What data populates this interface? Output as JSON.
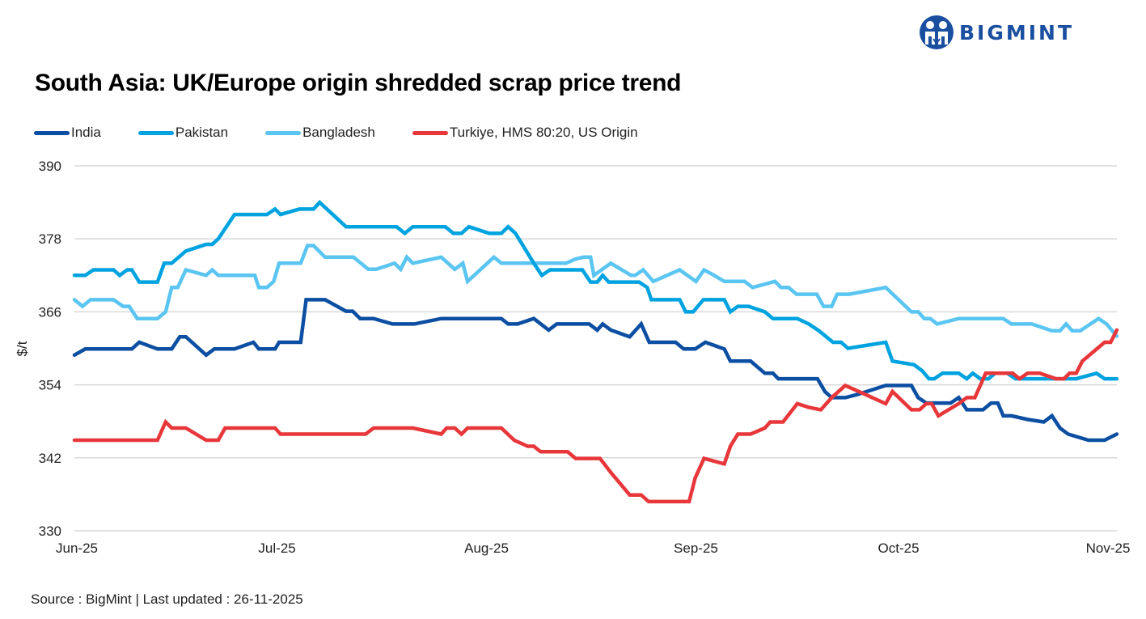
{
  "brand": {
    "name": "BIGMINT",
    "icon": "bigmint-people-logo-icon",
    "color": "#1a4fa0"
  },
  "source_text": "Source : BigMint | Last updated : 26-11-2025",
  "chart_data": {
    "type": "line",
    "title": "South Asia: UK/Europe origin shredded scrap price trend",
    "xlabel": "",
    "ylabel": "$/t",
    "ylim": [
      330,
      390
    ],
    "yticks": [
      330,
      342,
      354,
      366,
      378,
      390
    ],
    "x_unit": "days since 1-Jun-2025",
    "xlim": [
      0,
      154
    ],
    "xticks": [
      {
        "label": "Jun-25",
        "x": 0
      },
      {
        "label": "Jul-25",
        "x": 30
      },
      {
        "label": "Aug-25",
        "x": 61
      },
      {
        "label": "Sep-25",
        "x": 92
      },
      {
        "label": "Oct-25",
        "x": 122
      },
      {
        "label": "Nov-25",
        "x": 153
      }
    ],
    "grid": true,
    "legend_position": "top-left",
    "series": [
      {
        "name": "India",
        "color": "#0b4ea2",
        "points": [
          [
            0,
            358.9
          ],
          [
            1.6,
            359.9
          ],
          [
            8.5,
            359.9
          ],
          [
            9.6,
            361
          ],
          [
            12.3,
            359.9
          ],
          [
            14.4,
            359.9
          ],
          [
            15.6,
            361.9
          ],
          [
            16.5,
            361.9
          ],
          [
            19.5,
            358.9
          ],
          [
            20.7,
            359.9
          ],
          [
            23.7,
            359.9
          ],
          [
            26.5,
            361
          ],
          [
            27.3,
            359.9
          ],
          [
            29.7,
            359.9
          ],
          [
            30.3,
            361
          ],
          [
            33.5,
            361
          ],
          [
            34.3,
            368
          ],
          [
            37.1,
            368
          ],
          [
            40.2,
            366.1
          ],
          [
            41.2,
            366.1
          ],
          [
            42.3,
            364.9
          ],
          [
            44.3,
            364.9
          ],
          [
            47.1,
            364
          ],
          [
            50.3,
            364
          ],
          [
            54.3,
            364.9
          ],
          [
            63.2,
            364.9
          ],
          [
            64.2,
            364
          ],
          [
            65.6,
            364
          ],
          [
            68,
            364.9
          ],
          [
            70.2,
            363
          ],
          [
            71.4,
            364
          ],
          [
            76.2,
            364
          ],
          [
            77.4,
            363
          ],
          [
            78.2,
            364
          ],
          [
            79.4,
            363
          ],
          [
            82.2,
            361.9
          ],
          [
            83.9,
            364
          ],
          [
            85.1,
            361
          ],
          [
            89,
            361
          ],
          [
            90.2,
            359.9
          ],
          [
            91.9,
            359.9
          ],
          [
            93.4,
            361
          ],
          [
            96.2,
            359.9
          ],
          [
            97.1,
            357.9
          ],
          [
            100.1,
            357.9
          ],
          [
            102.2,
            355.9
          ],
          [
            103.4,
            355.9
          ],
          [
            104.2,
            355
          ],
          [
            110,
            355
          ],
          [
            111.1,
            352.9
          ],
          [
            112.1,
            351.9
          ],
          [
            114.1,
            351.9
          ],
          [
            115.9,
            352.4
          ],
          [
            120.1,
            353.9
          ],
          [
            123.9,
            353.9
          ],
          [
            124.9,
            351.9
          ],
          [
            126.1,
            351
          ],
          [
            127.9,
            351
          ],
          [
            129.7,
            351
          ],
          [
            130.9,
            351.9
          ],
          [
            132.1,
            349.9
          ],
          [
            134.5,
            349.9
          ],
          [
            135.7,
            351
          ],
          [
            136.7,
            351
          ],
          [
            137.5,
            348.9
          ],
          [
            138.7,
            348.9
          ],
          [
            141.1,
            348.3
          ],
          [
            143.5,
            347.9
          ],
          [
            144.7,
            348.9
          ],
          [
            145.9,
            346.9
          ],
          [
            147.1,
            345.9
          ],
          [
            150.1,
            344.9
          ],
          [
            152.5,
            344.9
          ],
          [
            154.3,
            345.9
          ]
        ]
      },
      {
        "name": "Pakistan",
        "color": "#00a3e0",
        "points": [
          [
            0,
            372
          ],
          [
            1.6,
            372
          ],
          [
            2.8,
            372.9
          ],
          [
            5.8,
            372.9
          ],
          [
            6.7,
            372
          ],
          [
            7.8,
            372.9
          ],
          [
            8.5,
            372.9
          ],
          [
            9.6,
            370.9
          ],
          [
            12.3,
            370.9
          ],
          [
            13.3,
            374
          ],
          [
            14.4,
            374
          ],
          [
            16.5,
            376
          ],
          [
            19.5,
            377.1
          ],
          [
            20.4,
            377.1
          ],
          [
            21.3,
            378
          ],
          [
            23.7,
            382
          ],
          [
            28.5,
            382
          ],
          [
            29.7,
            382.9
          ],
          [
            30.5,
            382
          ],
          [
            33.3,
            382.9
          ],
          [
            35.4,
            382.9
          ],
          [
            36.3,
            384
          ],
          [
            40.2,
            380
          ],
          [
            47.7,
            380
          ],
          [
            48.9,
            378.9
          ],
          [
            50.1,
            380
          ],
          [
            54.9,
            380
          ],
          [
            56.1,
            378.9
          ],
          [
            57.3,
            378.9
          ],
          [
            58.4,
            380
          ],
          [
            61.4,
            378.9
          ],
          [
            63.2,
            378.9
          ],
          [
            64.2,
            380
          ],
          [
            65.3,
            378.9
          ],
          [
            68,
            374
          ],
          [
            69.2,
            372
          ],
          [
            70.4,
            372.9
          ],
          [
            74,
            372.9
          ],
          [
            75.2,
            372.9
          ],
          [
            76.4,
            370.9
          ],
          [
            77.4,
            370.9
          ],
          [
            78.2,
            372
          ],
          [
            79.1,
            370.9
          ],
          [
            83.6,
            370.9
          ],
          [
            84.8,
            370
          ],
          [
            85.4,
            368
          ],
          [
            89.6,
            368
          ],
          [
            90.5,
            366
          ],
          [
            91.6,
            366
          ],
          [
            93.1,
            368
          ],
          [
            96.2,
            368
          ],
          [
            97.1,
            366
          ],
          [
            98.2,
            366.9
          ],
          [
            99.8,
            366.9
          ],
          [
            102.2,
            366
          ],
          [
            103.4,
            364.9
          ],
          [
            107,
            364.9
          ],
          [
            108.7,
            364
          ],
          [
            110.2,
            362.9
          ],
          [
            112.3,
            361
          ],
          [
            113.5,
            361
          ],
          [
            114.5,
            360
          ],
          [
            120.1,
            361
          ],
          [
            121.1,
            357.9
          ],
          [
            124.3,
            357.3
          ],
          [
            125.5,
            356.3
          ],
          [
            126.5,
            355
          ],
          [
            127.3,
            355
          ],
          [
            128.5,
            355.9
          ],
          [
            130.9,
            355.9
          ],
          [
            132.1,
            355
          ],
          [
            133,
            355.9
          ],
          [
            134.1,
            355
          ],
          [
            135.3,
            355
          ],
          [
            136.3,
            355.9
          ],
          [
            138.1,
            355.9
          ],
          [
            139.3,
            355
          ],
          [
            140.5,
            355
          ],
          [
            142.9,
            355
          ],
          [
            148.3,
            355
          ],
          [
            151.3,
            355.9
          ],
          [
            152.5,
            355
          ],
          [
            154.3,
            355
          ]
        ]
      },
      {
        "name": "Bangladesh",
        "color": "#5bc5f2",
        "points": [
          [
            0,
            368
          ],
          [
            1.2,
            366.9
          ],
          [
            2.4,
            368
          ],
          [
            5.8,
            368
          ],
          [
            7.2,
            366.9
          ],
          [
            8.1,
            366.9
          ],
          [
            9.3,
            364.9
          ],
          [
            12.3,
            364.9
          ],
          [
            13.5,
            366
          ],
          [
            14.4,
            370
          ],
          [
            15.3,
            370
          ],
          [
            16.5,
            372.9
          ],
          [
            19.5,
            372
          ],
          [
            20.4,
            372.9
          ],
          [
            21.3,
            372
          ],
          [
            26.7,
            372
          ],
          [
            27.3,
            370
          ],
          [
            28.5,
            370
          ],
          [
            29.5,
            371
          ],
          [
            30.3,
            374
          ],
          [
            33.5,
            374
          ],
          [
            34.5,
            376.9
          ],
          [
            35.4,
            376.9
          ],
          [
            37.1,
            375
          ],
          [
            41.3,
            375
          ],
          [
            43.5,
            373
          ],
          [
            44.7,
            373
          ],
          [
            47.4,
            374
          ],
          [
            48.3,
            373
          ],
          [
            49.2,
            375
          ],
          [
            50.1,
            374
          ],
          [
            54.3,
            375
          ],
          [
            56.3,
            373
          ],
          [
            57.5,
            374
          ],
          [
            58.2,
            371
          ],
          [
            62.1,
            375
          ],
          [
            63.2,
            374
          ],
          [
            72.8,
            374
          ],
          [
            74.2,
            374.7
          ],
          [
            75.4,
            375
          ],
          [
            76.4,
            375
          ],
          [
            76.9,
            372
          ],
          [
            79.4,
            374
          ],
          [
            82.4,
            372
          ],
          [
            83,
            372
          ],
          [
            84.2,
            372.9
          ],
          [
            85.7,
            371
          ],
          [
            89.6,
            372.9
          ],
          [
            92,
            371
          ],
          [
            93.2,
            372.9
          ],
          [
            94.7,
            372
          ],
          [
            96.2,
            371
          ],
          [
            99.2,
            371
          ],
          [
            100.4,
            370
          ],
          [
            103.7,
            371
          ],
          [
            104.6,
            370
          ],
          [
            105.7,
            370
          ],
          [
            106.9,
            368.9
          ],
          [
            109.9,
            368.9
          ],
          [
            110.9,
            366.9
          ],
          [
            112.1,
            366.9
          ],
          [
            112.9,
            368.9
          ],
          [
            114.7,
            368.9
          ],
          [
            120.1,
            370
          ],
          [
            123.9,
            366
          ],
          [
            124.9,
            366
          ],
          [
            125.8,
            364.9
          ],
          [
            126.7,
            364.9
          ],
          [
            127.7,
            364
          ],
          [
            130.9,
            364.9
          ],
          [
            132.7,
            364.9
          ],
          [
            137.5,
            364.9
          ],
          [
            138.7,
            364
          ],
          [
            141.7,
            364
          ],
          [
            144.7,
            362.9
          ],
          [
            145.9,
            362.9
          ],
          [
            146.8,
            364
          ],
          [
            147.7,
            362.9
          ],
          [
            148.9,
            362.9
          ],
          [
            151.6,
            364.9
          ],
          [
            152.8,
            364
          ],
          [
            154.3,
            362
          ]
        ]
      },
      {
        "name": "Turkiye, HMS 80:20, US Origin",
        "color": "#e8373a",
        "points": [
          [
            0,
            344.9
          ],
          [
            12.3,
            344.9
          ],
          [
            13.5,
            347.9
          ],
          [
            14.4,
            346.9
          ],
          [
            16.5,
            346.9
          ],
          [
            19.5,
            344.9
          ],
          [
            21.3,
            344.9
          ],
          [
            22.3,
            346.9
          ],
          [
            29.7,
            346.9
          ],
          [
            30.5,
            345.9
          ],
          [
            43.1,
            345.9
          ],
          [
            44.3,
            346.9
          ],
          [
            50.1,
            346.9
          ],
          [
            54.3,
            345.9
          ],
          [
            55.1,
            346.9
          ],
          [
            56.3,
            346.9
          ],
          [
            57.3,
            345.9
          ],
          [
            58.2,
            346.9
          ],
          [
            63.2,
            346.9
          ],
          [
            65.1,
            344.9
          ],
          [
            67.1,
            343.9
          ],
          [
            68,
            343.9
          ],
          [
            69,
            343
          ],
          [
            73,
            343
          ],
          [
            74.2,
            341.9
          ],
          [
            77.8,
            341.9
          ],
          [
            79.4,
            339.6
          ],
          [
            82.2,
            335.9
          ],
          [
            83.9,
            335.9
          ],
          [
            85,
            334.8
          ],
          [
            91,
            334.8
          ],
          [
            91.9,
            338.7
          ],
          [
            93.2,
            341.9
          ],
          [
            96.2,
            341
          ],
          [
            97.1,
            343.9
          ],
          [
            98.2,
            345.9
          ],
          [
            100.1,
            345.9
          ],
          [
            102.2,
            346.9
          ],
          [
            103,
            347.9
          ],
          [
            104.9,
            347.9
          ],
          [
            107,
            350.9
          ],
          [
            108.7,
            350.3
          ],
          [
            110.5,
            349.9
          ],
          [
            112.1,
            351.9
          ],
          [
            114.1,
            353.9
          ],
          [
            115.9,
            353
          ],
          [
            120.1,
            350.9
          ],
          [
            121.1,
            352.9
          ],
          [
            123.9,
            349.9
          ],
          [
            125.1,
            349.9
          ],
          [
            126.1,
            350.9
          ],
          [
            126.9,
            350.9
          ],
          [
            127.9,
            348.9
          ],
          [
            130.9,
            350.9
          ],
          [
            132.1,
            351.9
          ],
          [
            133.3,
            351.9
          ],
          [
            134.9,
            355.9
          ],
          [
            138.9,
            355.9
          ],
          [
            139.9,
            355
          ],
          [
            141.1,
            355.9
          ],
          [
            142.9,
            355.9
          ],
          [
            145.3,
            355
          ],
          [
            146.5,
            355
          ],
          [
            147.3,
            355.9
          ],
          [
            148.3,
            355.9
          ],
          [
            149.2,
            357.9
          ],
          [
            152.5,
            361
          ],
          [
            153.4,
            361
          ],
          [
            154.3,
            363
          ]
        ]
      }
    ]
  }
}
